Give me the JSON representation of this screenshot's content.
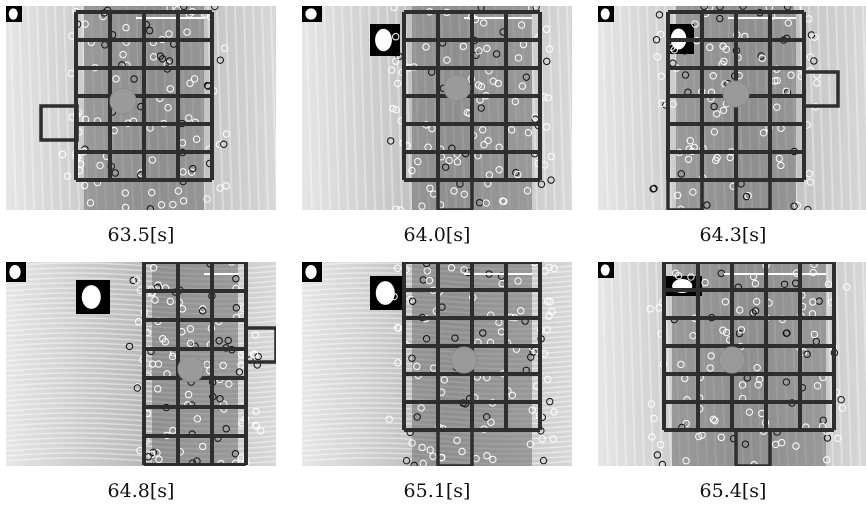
{
  "panels": [
    {
      "caption": "63.5[s]"
    },
    {
      "caption": "64.0[s]"
    },
    {
      "caption": "64.3[s]"
    },
    {
      "caption": "64.8[s]"
    },
    {
      "caption": "65.1[s]"
    },
    {
      "caption": "65.4[s]"
    }
  ],
  "colors": {
    "grid": "#2e2e2e",
    "marker": "#9a9a9a",
    "background_light": "#dcdcdc",
    "background_dark": "#7a7a7a"
  }
}
